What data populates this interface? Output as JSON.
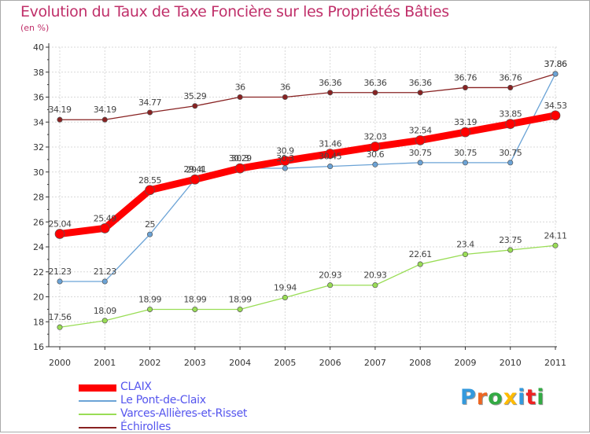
{
  "chart_data": {
    "type": "line",
    "title": "Evolution du Taux de Taxe Foncière sur les Propriétés Bâties",
    "subtitle": "(en %)",
    "xlabel": "",
    "ylabel": "",
    "categories": [
      "2000",
      "2001",
      "2002",
      "2003",
      "2004",
      "2005",
      "2006",
      "2007",
      "2008",
      "2009",
      "2010",
      "2011"
    ],
    "ylim": [
      16,
      40
    ],
    "yticks": [
      16,
      18,
      20,
      22,
      24,
      26,
      28,
      30,
      32,
      34,
      36,
      38,
      40
    ],
    "grid": true,
    "legend_position": "bottom-left",
    "series": [
      {
        "name": "CLAIX",
        "color": "#ff0000",
        "values": [
          25.04,
          25.49,
          28.55,
          29.4,
          30.29,
          30.9,
          31.46,
          32.03,
          32.54,
          33.19,
          33.85,
          34.53
        ],
        "labels": [
          "25.04",
          "25.49",
          "28.55",
          "29.4",
          "30.29",
          "30.9",
          "31.46",
          "32.03",
          "32.54",
          "33.19",
          "33.85",
          "34.53"
        ]
      },
      {
        "name": "Le Pont-de-Claix",
        "color": "#6ba3d6",
        "values": [
          21.23,
          21.23,
          25,
          29.41,
          30.3,
          30.3,
          30.45,
          30.6,
          30.75,
          30.75,
          30.75,
          37.86
        ],
        "labels": [
          "21.23",
          "21.23",
          "25",
          "29.41",
          "30.3",
          "30.3",
          "30.45",
          "30.6",
          "30.75",
          "30.75",
          "30.75",
          "37.86"
        ]
      },
      {
        "name": "Varces-Allières-et-Risset",
        "color": "#99dd55",
        "values": [
          17.56,
          18.09,
          18.99,
          18.99,
          18.99,
          19.94,
          20.93,
          20.93,
          22.61,
          23.4,
          23.75,
          24.11
        ],
        "labels": [
          "17.56",
          "18.09",
          "18.99",
          "18.99",
          "18.99",
          "19.94",
          "20.93",
          "20.93",
          "22.61",
          "23.4",
          "23.75",
          "24.11"
        ]
      },
      {
        "name": "Échirolles",
        "color": "#882222",
        "values": [
          34.19,
          34.19,
          34.77,
          35.29,
          36,
          36,
          36.36,
          36.36,
          36.36,
          36.76,
          36.76,
          37.86
        ],
        "labels": [
          "34.19",
          "34.19",
          "34.77",
          "35.29",
          "36",
          "36",
          "36.36",
          "36.36",
          "36.36",
          "36.76",
          "36.76",
          "37.86"
        ]
      }
    ]
  },
  "logo": {
    "text": "Proxiti",
    "colors": [
      "#3399dd",
      "#ee6622",
      "#33aa44",
      "#ffbb00",
      "#3399dd",
      "#ee2222",
      "#33aa44"
    ]
  }
}
